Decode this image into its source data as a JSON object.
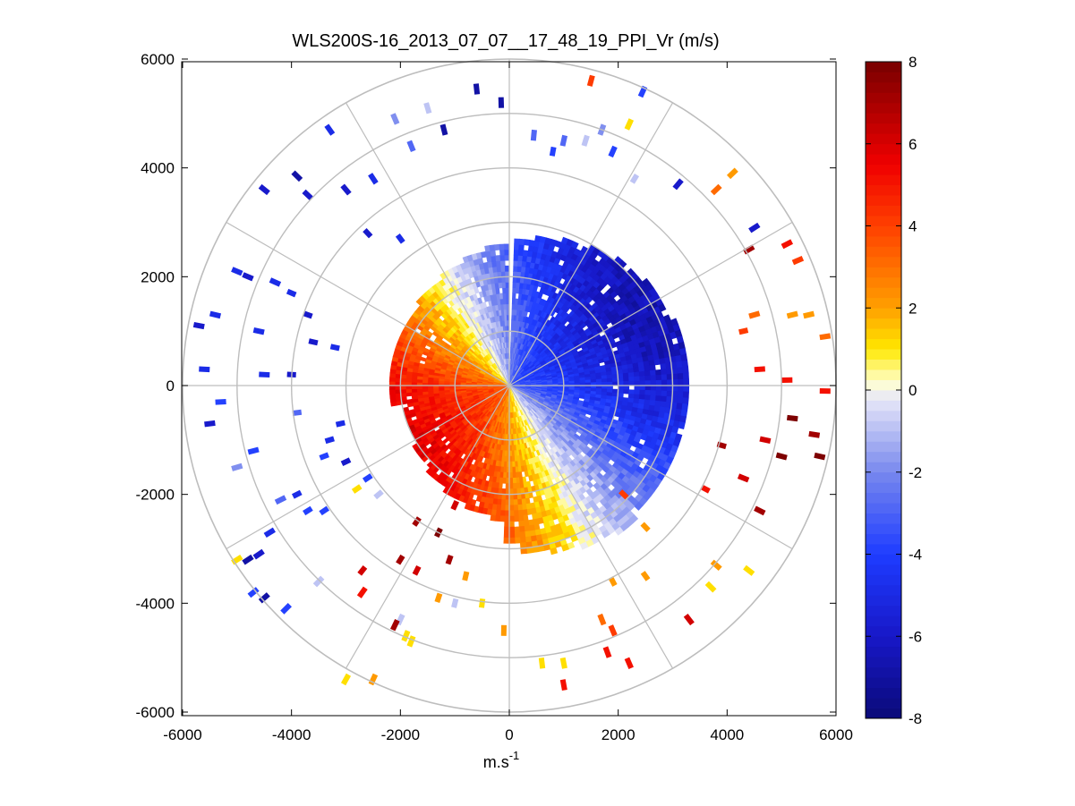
{
  "chart_data": {
    "type": "polar-scatter",
    "title": "WLS200S-16_2013_07_07__17_48_19_PPI_Vr (m/s)",
    "xlabel": "m.s",
    "xlabel_sup": "-1",
    "xlim": [
      -6000,
      6000
    ],
    "ylim": [
      -6000,
      6000
    ],
    "xticks": [
      -6000,
      -4000,
      -2000,
      0,
      2000,
      4000,
      6000
    ],
    "yticks": [
      6000,
      4000,
      2000,
      0,
      -2000,
      -4000,
      -6000
    ],
    "range_rings": [
      1000,
      2000,
      3000,
      4000,
      5000,
      6000
    ],
    "spokes_deg": [
      0,
      30,
      60,
      90,
      120,
      150,
      180,
      210,
      240,
      270,
      300,
      330
    ],
    "grid": true,
    "colorbar": {
      "position": "right",
      "min": -8,
      "max": 8,
      "ticks": [
        8,
        6,
        4,
        2,
        0,
        -2,
        -4,
        -6,
        -8
      ]
    },
    "colormap_stops": [
      {
        "v": -8,
        "color": "#0a0a78"
      },
      {
        "v": -6,
        "color": "#1818c8"
      },
      {
        "v": -4,
        "color": "#1e3cff"
      },
      {
        "v": -2,
        "color": "#7888ee"
      },
      {
        "v": -0.2,
        "color": "#e8e8f8"
      },
      {
        "v": 0.2,
        "color": "#ffffd0"
      },
      {
        "v": 1,
        "color": "#ffe800"
      },
      {
        "v": 2,
        "color": "#ffa000"
      },
      {
        "v": 4,
        "color": "#ff4000"
      },
      {
        "v": 5.5,
        "color": "#f00000"
      },
      {
        "v": 8,
        "color": "#780000"
      }
    ],
    "scan": {
      "core_max_range_m": 3300,
      "notch_azimuth_deg": 0,
      "wind_direction_deg": 60,
      "max_speed_ms": 6.5
    },
    "scatter_points": [
      {
        "x": -600,
        "y": 5450,
        "v": -7
      },
      {
        "x": -150,
        "y": 5200,
        "v": -7
      },
      {
        "x": 1500,
        "y": 5600,
        "v": 4
      },
      {
        "x": 2450,
        "y": 5400,
        "v": -4
      },
      {
        "x": 2200,
        "y": 4800,
        "v": 1
      },
      {
        "x": -1500,
        "y": 5100,
        "v": -1
      },
      {
        "x": -2100,
        "y": 4900,
        "v": -2
      },
      {
        "x": -1200,
        "y": 4700,
        "v": -7
      },
      {
        "x": -3300,
        "y": 4700,
        "v": -5
      },
      {
        "x": -4500,
        "y": 3600,
        "v": -6
      },
      {
        "x": -3900,
        "y": 3850,
        "v": -7
      },
      {
        "x": -3700,
        "y": 3500,
        "v": -6
      },
      {
        "x": -3000,
        "y": 3600,
        "v": -6
      },
      {
        "x": -2500,
        "y": 3800,
        "v": -5
      },
      {
        "x": -1800,
        "y": 4400,
        "v": -3
      },
      {
        "x": 450,
        "y": 4600,
        "v": -3
      },
      {
        "x": 800,
        "y": 4300,
        "v": -4
      },
      {
        "x": 1000,
        "y": 4500,
        "v": -3
      },
      {
        "x": 1400,
        "y": 4500,
        "v": -1
      },
      {
        "x": 1700,
        "y": 4700,
        "v": -2
      },
      {
        "x": 1900,
        "y": 4300,
        "v": -4
      },
      {
        "x": 2300,
        "y": 3800,
        "v": -1
      },
      {
        "x": 3100,
        "y": 3700,
        "v": -6
      },
      {
        "x": 3800,
        "y": 3600,
        "v": 3
      },
      {
        "x": 4100,
        "y": 3900,
        "v": 2
      },
      {
        "x": 4500,
        "y": 2900,
        "v": -6
      },
      {
        "x": 5100,
        "y": 2600,
        "v": 5
      },
      {
        "x": 4400,
        "y": 2500,
        "v": 7
      },
      {
        "x": 5300,
        "y": 2300,
        "v": 4
      },
      {
        "x": 5500,
        "y": 1300,
        "v": 2
      },
      {
        "x": 5800,
        "y": 900,
        "v": 3
      },
      {
        "x": 5200,
        "y": 1300,
        "v": 2
      },
      {
        "x": 4500,
        "y": 1300,
        "v": 3
      },
      {
        "x": 4300,
        "y": 1000,
        "v": 4
      },
      {
        "x": 4600,
        "y": 300,
        "v": 5
      },
      {
        "x": 5100,
        "y": 100,
        "v": 5
      },
      {
        "x": 5800,
        "y": -100,
        "v": 5
      },
      {
        "x": 5200,
        "y": -600,
        "v": 8
      },
      {
        "x": 5600,
        "y": -900,
        "v": 7
      },
      {
        "x": 5700,
        "y": -1300,
        "v": 8
      },
      {
        "x": 5000,
        "y": -1300,
        "v": 8
      },
      {
        "x": 4700,
        "y": -1000,
        "v": 6
      },
      {
        "x": 3900,
        "y": -1100,
        "v": 7
      },
      {
        "x": 4300,
        "y": -1700,
        "v": 6
      },
      {
        "x": 4600,
        "y": -2300,
        "v": 7
      },
      {
        "x": 3600,
        "y": -1900,
        "v": 5
      },
      {
        "x": 4400,
        "y": -3400,
        "v": 1
      },
      {
        "x": 3800,
        "y": -3300,
        "v": 2
      },
      {
        "x": 3700,
        "y": -3700,
        "v": 1
      },
      {
        "x": 3300,
        "y": -4300,
        "v": 6
      },
      {
        "x": 2500,
        "y": -3500,
        "v": 2
      },
      {
        "x": 2500,
        "y": -2600,
        "v": 2
      },
      {
        "x": 2100,
        "y": -2000,
        "v": 4
      },
      {
        "x": 1900,
        "y": -3600,
        "v": 2
      },
      {
        "x": 1700,
        "y": -4300,
        "v": 3
      },
      {
        "x": 1900,
        "y": -4500,
        "v": 4
      },
      {
        "x": 1800,
        "y": -4900,
        "v": 5
      },
      {
        "x": 2200,
        "y": -5100,
        "v": 5
      },
      {
        "x": 1000,
        "y": -5100,
        "v": 1
      },
      {
        "x": 600,
        "y": -5100,
        "v": 1
      },
      {
        "x": 1000,
        "y": -5500,
        "v": 5
      },
      {
        "x": -100,
        "y": -4500,
        "v": 2
      },
      {
        "x": -500,
        "y": -4000,
        "v": 1
      },
      {
        "x": -800,
        "y": -3500,
        "v": 2
      },
      {
        "x": -1000,
        "y": -4000,
        "v": -1
      },
      {
        "x": -1300,
        "y": -3900,
        "v": 2
      },
      {
        "x": -1700,
        "y": -3400,
        "v": 6
      },
      {
        "x": -2000,
        "y": -3200,
        "v": 7
      },
      {
        "x": -1100,
        "y": -3200,
        "v": 7
      },
      {
        "x": -1300,
        "y": -2700,
        "v": 8
      },
      {
        "x": -1700,
        "y": -2500,
        "v": 7
      },
      {
        "x": -1000,
        "y": -2200,
        "v": 6
      },
      {
        "x": -2000,
        "y": -4300,
        "v": -1
      },
      {
        "x": -2100,
        "y": -4400,
        "v": 7
      },
      {
        "x": -1900,
        "y": -4600,
        "v": 1
      },
      {
        "x": -2700,
        "y": -3400,
        "v": 6
      },
      {
        "x": -2700,
        "y": -3800,
        "v": 5
      },
      {
        "x": -1800,
        "y": -4700,
        "v": 1
      },
      {
        "x": -2500,
        "y": -5400,
        "v": 2
      },
      {
        "x": -3000,
        "y": -5400,
        "v": 1
      },
      {
        "x": -3700,
        "y": -2300,
        "v": -4
      },
      {
        "x": -3400,
        "y": -2300,
        "v": -4
      },
      {
        "x": -3900,
        "y": -2000,
        "v": -5
      },
      {
        "x": -4200,
        "y": -2100,
        "v": -3
      },
      {
        "x": -4400,
        "y": -2700,
        "v": -5
      },
      {
        "x": -4600,
        "y": -3100,
        "v": -6
      },
      {
        "x": -4800,
        "y": -3200,
        "v": -7
      },
      {
        "x": -5000,
        "y": -3200,
        "v": 1
      },
      {
        "x": -4500,
        "y": -3900,
        "v": -7
      },
      {
        "x": -4700,
        "y": -3800,
        "v": -4
      },
      {
        "x": -4100,
        "y": -4100,
        "v": -4
      },
      {
        "x": -3500,
        "y": -3600,
        "v": -1
      },
      {
        "x": -5500,
        "y": -700,
        "v": -6
      },
      {
        "x": -5300,
        "y": -300,
        "v": -4
      },
      {
        "x": -5600,
        "y": 300,
        "v": -5
      },
      {
        "x": -5700,
        "y": 1100,
        "v": -6
      },
      {
        "x": -5400,
        "y": 1300,
        "v": -5
      },
      {
        "x": -5000,
        "y": 2100,
        "v": -5
      },
      {
        "x": -4800,
        "y": 2000,
        "v": -6
      },
      {
        "x": -4300,
        "y": 1900,
        "v": -5
      },
      {
        "x": -4000,
        "y": 1700,
        "v": -5
      },
      {
        "x": -4600,
        "y": 1000,
        "v": -5
      },
      {
        "x": -3700,
        "y": 1300,
        "v": -6
      },
      {
        "x": -4000,
        "y": 200,
        "v": -6
      },
      {
        "x": -4500,
        "y": 200,
        "v": -5
      },
      {
        "x": -3900,
        "y": -500,
        "v": -3
      },
      {
        "x": -3400,
        "y": -1300,
        "v": -4
      },
      {
        "x": -3300,
        "y": -1000,
        "v": -5
      },
      {
        "x": -5000,
        "y": -1500,
        "v": -2
      },
      {
        "x": -4700,
        "y": -1200,
        "v": -4
      },
      {
        "x": -2000,
        "y": 2700,
        "v": -5
      },
      {
        "x": -2600,
        "y": 2800,
        "v": -6
      },
      {
        "x": -3600,
        "y": 800,
        "v": -6
      },
      {
        "x": -3200,
        "y": 700,
        "v": -5
      },
      {
        "x": -2400,
        "y": -2000,
        "v": -1
      },
      {
        "x": -2800,
        "y": -1900,
        "v": 1
      },
      {
        "x": -2600,
        "y": -1700,
        "v": -4
      },
      {
        "x": -3000,
        "y": -1400,
        "v": -6
      },
      {
        "x": -3100,
        "y": -700,
        "v": -5
      }
    ]
  }
}
